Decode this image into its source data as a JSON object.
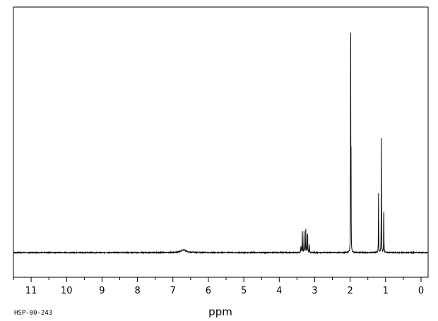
{
  "chart_data": {
    "type": "line",
    "xlabel": "ppm",
    "xlim": [
      11.5,
      -0.2
    ],
    "x_reversed": true,
    "ylim": [
      -0.1,
      1.07
    ],
    "grid": false,
    "legend": "none",
    "major_ticks": [
      11,
      10,
      9,
      8,
      7,
      6,
      5,
      4,
      3,
      2,
      1,
      0
    ],
    "tick_labels": [
      "11",
      "10",
      "9",
      "8",
      "7",
      "6",
      "5",
      "4",
      "3",
      "2",
      "1",
      "0"
    ],
    "peaks": [
      {
        "ppm": 6.7,
        "height": 0.012,
        "width": 0.18
      },
      {
        "ppm": 3.39,
        "height": 0.03,
        "width": 0.01
      },
      {
        "ppm": 3.35,
        "height": 0.1,
        "width": 0.01
      },
      {
        "ppm": 3.3,
        "height": 0.095,
        "width": 0.01
      },
      {
        "ppm": 3.25,
        "height": 0.11,
        "width": 0.01
      },
      {
        "ppm": 3.2,
        "height": 0.095,
        "width": 0.01
      },
      {
        "ppm": 3.15,
        "height": 0.035,
        "width": 0.01
      },
      {
        "ppm": 1.985,
        "height": 1.0,
        "width": 0.006
      },
      {
        "ppm": 1.975,
        "height": 0.42,
        "width": 0.006
      },
      {
        "ppm": 1.99,
        "height": 0.12,
        "width": 0.008
      },
      {
        "ppm": 1.2,
        "height": 0.28,
        "width": 0.007
      },
      {
        "ppm": 1.12,
        "height": 0.56,
        "width": 0.007
      },
      {
        "ppm": 1.05,
        "height": 0.24,
        "width": 0.007
      }
    ]
  },
  "footer": {
    "spectrum_id": "HSP-00-243"
  }
}
